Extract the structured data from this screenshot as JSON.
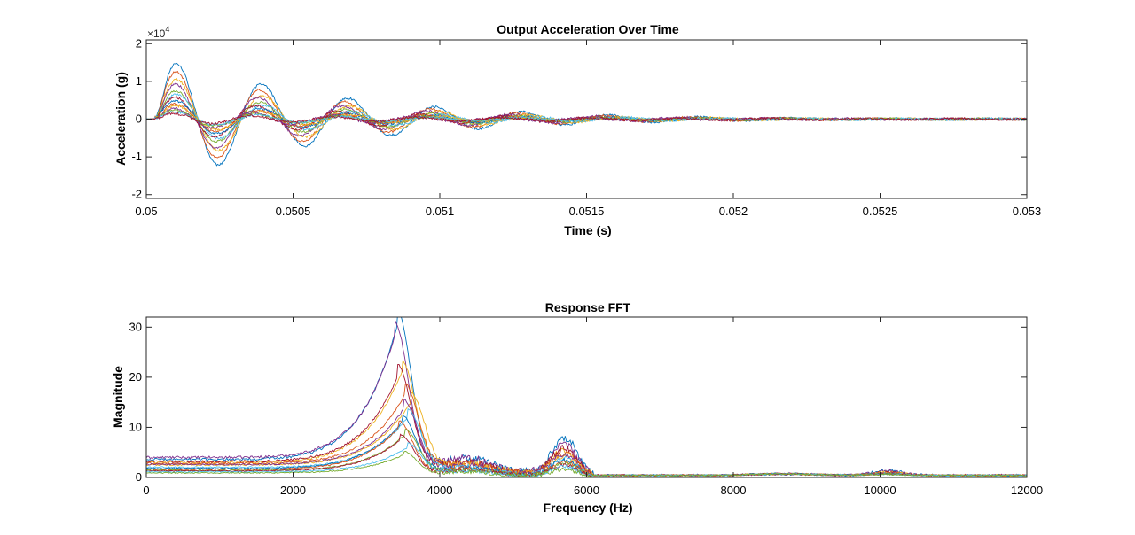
{
  "chart_data": [
    {
      "type": "line",
      "title": "Output Acceleration Over Time",
      "xlabel": "Time (s)",
      "ylabel": "Acceleration (g)",
      "y_exponent_label": "×10",
      "y_exponent_power": "4",
      "xlim": [
        0.05,
        0.053
      ],
      "ylim": [
        -2.1,
        2.1
      ],
      "x_ticks": [
        0.05,
        0.0505,
        0.051,
        0.0515,
        0.052,
        0.0525,
        0.053
      ],
      "x_tick_labels": [
        "0.05",
        "0.0505",
        "0.051",
        "0.0515",
        "0.052",
        "0.0525",
        "0.053"
      ],
      "y_ticks": [
        -2,
        -1,
        0,
        1,
        2
      ],
      "y_tick_labels": [
        "-2",
        "-1",
        "0",
        "1",
        "2"
      ],
      "grid": false,
      "legend": "none",
      "series": [
        {
          "color": "#0072BD",
          "amp": 1.8,
          "freq": 3400,
          "decay": 1900
        },
        {
          "color": "#D95319",
          "amp": 1.55,
          "freq": 3450,
          "decay": 2000
        },
        {
          "color": "#EDB120",
          "amp": 1.3,
          "freq": 3350,
          "decay": 2100
        },
        {
          "color": "#7E2F8E",
          "amp": 1.15,
          "freq": 3500,
          "decay": 2000
        },
        {
          "color": "#77AC30",
          "amp": 0.95,
          "freq": 3420,
          "decay": 2200
        },
        {
          "color": "#4DBEEE",
          "amp": 0.85,
          "freq": 3300,
          "decay": 2300
        },
        {
          "color": "#A2142F",
          "amp": 0.75,
          "freq": 3550,
          "decay": 2200
        },
        {
          "color": "#0072BD",
          "amp": 0.65,
          "freq": 3380,
          "decay": 2400
        },
        {
          "color": "#D95319",
          "amp": 0.55,
          "freq": 3480,
          "decay": 2400
        },
        {
          "color": "#EDB120",
          "amp": 0.5,
          "freq": 3320,
          "decay": 2500
        },
        {
          "color": "#7E2F8E",
          "amp": 0.42,
          "freq": 3600,
          "decay": 2500
        },
        {
          "color": "#77AC30",
          "amp": 0.35,
          "freq": 3440,
          "decay": 2600
        },
        {
          "color": "#4DBEEE",
          "amp": 0.3,
          "freq": 3360,
          "decay": 2600
        },
        {
          "color": "#A2142F",
          "amp": 0.25,
          "freq": 3520,
          "decay": 2700
        }
      ]
    },
    {
      "type": "line",
      "title": "Response FFT",
      "xlabel": "Frequency (Hz)",
      "ylabel": "Magnitude",
      "xlim": [
        0,
        12000
      ],
      "ylim": [
        0,
        32
      ],
      "x_ticks": [
        0,
        2000,
        4000,
        6000,
        8000,
        10000,
        12000
      ],
      "x_tick_labels": [
        "0",
        "2000",
        "4000",
        "6000",
        "8000",
        "10000",
        "12000"
      ],
      "y_ticks": [
        0,
        10,
        20,
        30
      ],
      "y_tick_labels": [
        "0",
        "10",
        "20",
        "30"
      ],
      "grid": false,
      "legend": "none",
      "series": [
        {
          "color": "#0072BD",
          "peak": 30.5,
          "peak_f": 3420,
          "base": 3.6,
          "hump": 7.5
        },
        {
          "color": "#7E2F8E",
          "peak": 28.0,
          "peak_f": 3380,
          "base": 4.0,
          "hump": 6.0
        },
        {
          "color": "#EDB120",
          "peak": 21.0,
          "peak_f": 3480,
          "base": 3.0,
          "hump": 5.0
        },
        {
          "color": "#A2142F",
          "peak": 20.0,
          "peak_f": 3420,
          "base": 3.2,
          "hump": 5.5
        },
        {
          "color": "#D95319",
          "peak": 16.5,
          "peak_f": 3520,
          "base": 2.8,
          "hump": 4.5
        },
        {
          "color": "#EDB120",
          "peak": 15.0,
          "peak_f": 3600,
          "base": 2.5,
          "hump": 4.0
        },
        {
          "color": "#7E2F8E",
          "peak": 13.5,
          "peak_f": 3500,
          "base": 2.6,
          "hump": 4.2
        },
        {
          "color": "#4DBEEE",
          "peak": 12.0,
          "peak_f": 3560,
          "base": 2.0,
          "hump": 3.5
        },
        {
          "color": "#0072BD",
          "peak": 11.0,
          "peak_f": 3480,
          "base": 1.8,
          "hump": 3.2
        },
        {
          "color": "#D95319",
          "peak": 10.0,
          "peak_f": 3440,
          "base": 1.6,
          "hump": 3.0
        },
        {
          "color": "#77AC30",
          "peak": 8.5,
          "peak_f": 3520,
          "base": 1.4,
          "hump": 2.6
        },
        {
          "color": "#A2142F",
          "peak": 7.5,
          "peak_f": 3460,
          "base": 1.3,
          "hump": 2.4
        },
        {
          "color": "#4DBEEE",
          "peak": 6.0,
          "peak_f": 3560,
          "base": 1.1,
          "hump": 2.0
        },
        {
          "color": "#77AC30",
          "peak": 4.5,
          "peak_f": 3500,
          "base": 0.9,
          "hump": 1.5
        }
      ]
    }
  ]
}
